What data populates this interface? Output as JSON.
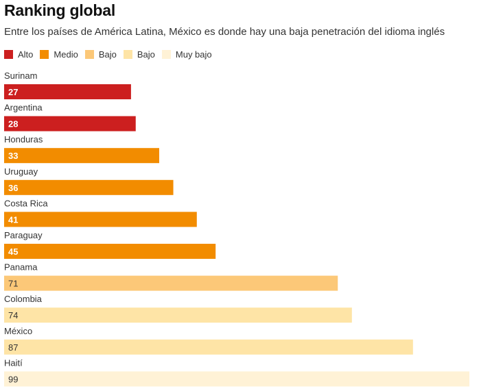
{
  "header": {
    "title": "Ranking global",
    "subtitle": "Entre los países de América Latina, México es donde hay una baja penetración del idioma inglés"
  },
  "legend": [
    {
      "label": "Alto",
      "color": "#cc1f1f"
    },
    {
      "label": "Medio",
      "color": "#f28c00"
    },
    {
      "label": "Bajo",
      "color": "#fcc878"
    },
    {
      "label": "Bajo",
      "color": "#fee4a6"
    },
    {
      "label": "Muy bajo",
      "color": "#fff2d6"
    }
  ],
  "chart_data": {
    "type": "bar",
    "orientation": "horizontal",
    "categories": [
      "Surinam",
      "Argentina",
      "Honduras",
      "Uruguay",
      "Costa Rica",
      "Paraguay",
      "Panama",
      "Colombia",
      "México",
      "Haití"
    ],
    "values": [
      27,
      28,
      33,
      36,
      41,
      45,
      71,
      74,
      87,
      99
    ],
    "levels": [
      "Alto",
      "Alto",
      "Medio",
      "Medio",
      "Medio",
      "Medio",
      "Bajo",
      "Bajo",
      "Bajo",
      "Muy bajo"
    ],
    "colors": [
      "#cc1f1f",
      "#cc1f1f",
      "#f28c00",
      "#f28c00",
      "#f28c00",
      "#f28c00",
      "#fcc878",
      "#fee4a6",
      "#fee4a6",
      "#fff2d6"
    ],
    "label_colors": [
      "#ffffff",
      "#ffffff",
      "#ffffff",
      "#ffffff",
      "#ffffff",
      "#ffffff",
      "#333333",
      "#333333",
      "#333333",
      "#333333"
    ],
    "xlim": [
      0,
      99
    ],
    "grid": false,
    "title": "Ranking global",
    "xlabel": "",
    "ylabel": ""
  }
}
